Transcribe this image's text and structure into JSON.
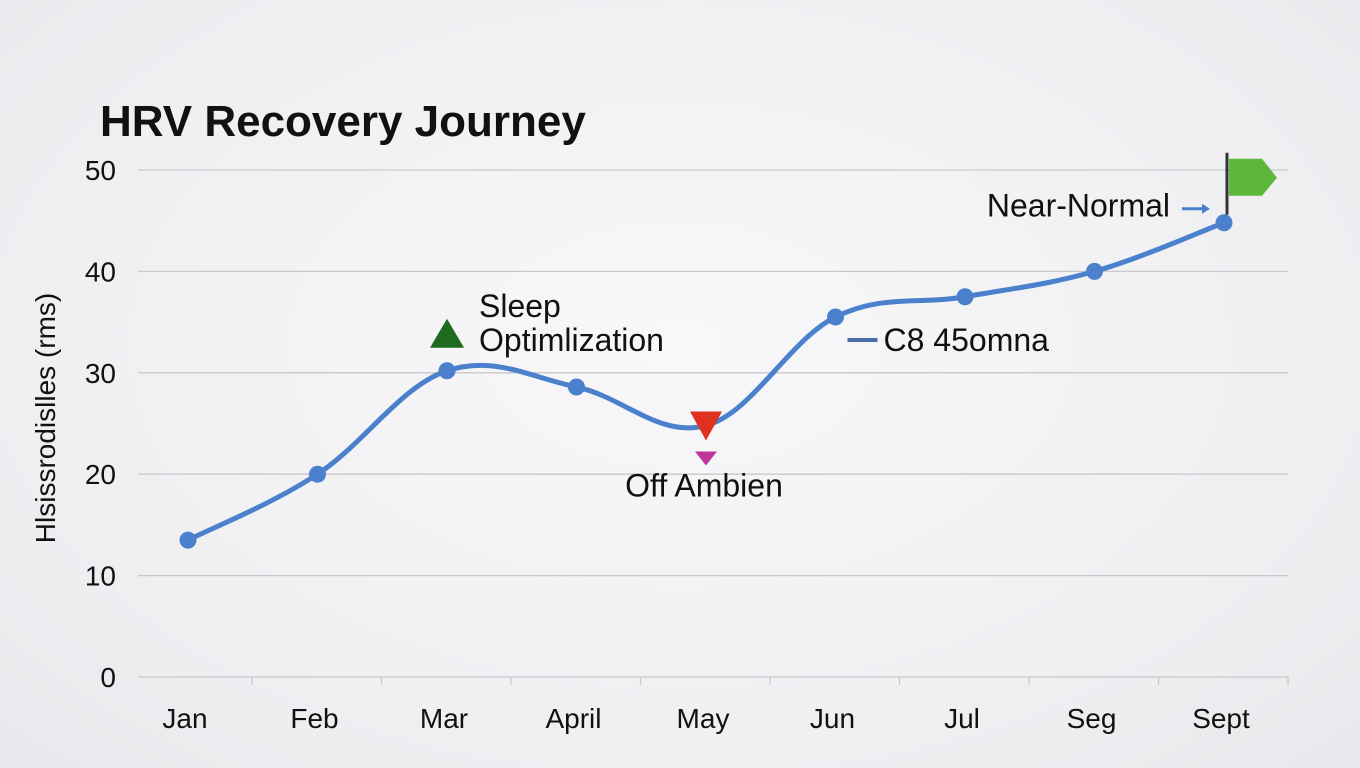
{
  "chart_data": {
    "type": "line",
    "title": "HRV Recovery Journey",
    "ylabel": "Hlsissrodislles  (rms)",
    "xlabel": "",
    "ylim": [
      0,
      50
    ],
    "yticks": [
      0,
      10,
      20,
      30,
      40,
      50
    ],
    "grid": true,
    "categories": [
      "Jan",
      "Feb",
      "Mar",
      "April",
      "May",
      "Jun",
      "Jul",
      "Seg",
      "Sept"
    ],
    "series": [
      {
        "values": [
          13.5,
          20,
          30.2,
          28.6,
          24.8,
          35.5,
          37.5,
          40,
          44.8
        ],
        "color": "#4a80cc"
      }
    ],
    "annotations": [
      {
        "label_lines": [
          "Sleep",
          "Optimlization"
        ],
        "category": "Mar",
        "marker": "triangle-up",
        "color": "#1e6b1e"
      },
      {
        "label_lines": [
          "Off Ambien"
        ],
        "category": "May",
        "marker": "triangle-down",
        "color": "#e0301e",
        "secondary_marker_color": "#c0359c"
      },
      {
        "label_lines": [
          "C8 45omna"
        ],
        "category": "Jun",
        "marker": "dash",
        "color": "#4a6fa8"
      },
      {
        "label_lines": [
          "Near-Normal"
        ],
        "category": "Sept",
        "marker": "flag",
        "color": "#5db83a",
        "arrow_color": "#4a80cc"
      }
    ]
  }
}
